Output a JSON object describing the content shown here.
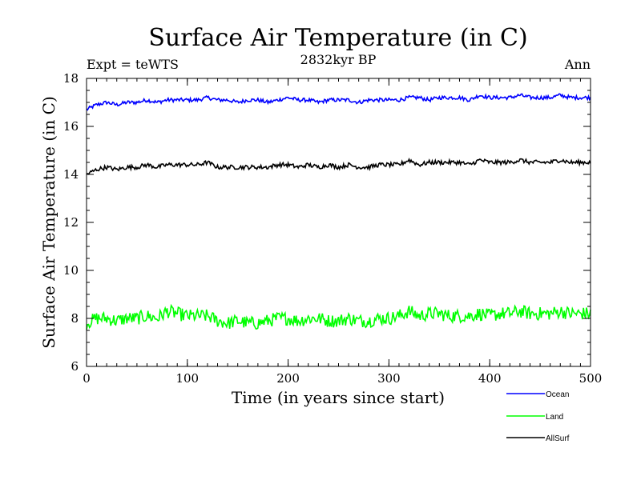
{
  "chart_data": {
    "type": "line",
    "title": "Surface Air Temperature (in C)",
    "subtitle": "2832kyr BP",
    "experiment_label": "Expt = teWTS",
    "period_label": "Ann",
    "xlabel": "Time (in years since start)",
    "ylabel": "Surface Air Temperature (in C)",
    "xlim": [
      0,
      500
    ],
    "ylim": [
      6,
      18
    ],
    "x_ticks": [
      0,
      100,
      200,
      300,
      400,
      500
    ],
    "y_ticks": [
      6,
      8,
      10,
      12,
      14,
      16,
      18
    ],
    "x_minor_step": 10,
    "y_minor_step": 0.5,
    "grid": false,
    "legend_position": "bottom-right",
    "series": [
      {
        "name": "Ocean",
        "color": "#0000ff",
        "x": [
          0,
          10,
          20,
          30,
          40,
          50,
          60,
          70,
          80,
          90,
          100,
          110,
          120,
          130,
          140,
          150,
          160,
          170,
          180,
          190,
          200,
          210,
          220,
          230,
          240,
          250,
          260,
          270,
          280,
          290,
          300,
          310,
          320,
          330,
          340,
          350,
          360,
          370,
          380,
          390,
          400,
          410,
          420,
          430,
          440,
          450,
          460,
          470,
          480,
          490,
          500
        ],
        "values": [
          16.7,
          16.9,
          17.0,
          16.9,
          17.0,
          17.0,
          17.1,
          17.0,
          17.1,
          17.1,
          17.1,
          17.1,
          17.2,
          17.1,
          17.1,
          17.0,
          17.1,
          17.1,
          17.0,
          17.1,
          17.2,
          17.1,
          17.1,
          17.0,
          17.1,
          17.1,
          17.1,
          17.0,
          17.1,
          17.1,
          17.1,
          17.1,
          17.2,
          17.2,
          17.1,
          17.2,
          17.2,
          17.2,
          17.1,
          17.3,
          17.2,
          17.2,
          17.2,
          17.3,
          17.2,
          17.2,
          17.2,
          17.3,
          17.2,
          17.2,
          17.2
        ]
      },
      {
        "name": "Land",
        "color": "#00ff00",
        "x": [
          0,
          10,
          20,
          30,
          40,
          50,
          60,
          70,
          80,
          90,
          100,
          110,
          120,
          130,
          140,
          150,
          160,
          170,
          180,
          190,
          200,
          210,
          220,
          230,
          240,
          250,
          260,
          270,
          280,
          290,
          300,
          310,
          320,
          330,
          340,
          350,
          360,
          370,
          380,
          390,
          400,
          410,
          420,
          430,
          440,
          450,
          460,
          470,
          480,
          490,
          500
        ],
        "values": [
          7.8,
          8.0,
          8.0,
          7.9,
          8.0,
          8.0,
          8.1,
          8.0,
          8.3,
          8.2,
          8.1,
          8.1,
          8.1,
          7.9,
          7.8,
          7.9,
          7.8,
          7.8,
          7.9,
          8.0,
          8.0,
          7.9,
          8.0,
          8.0,
          7.9,
          7.9,
          8.0,
          7.9,
          7.9,
          8.0,
          8.0,
          8.1,
          8.3,
          8.1,
          8.2,
          8.2,
          8.1,
          8.1,
          8.1,
          8.2,
          8.1,
          8.2,
          8.2,
          8.3,
          8.2,
          8.2,
          8.2,
          8.3,
          8.2,
          8.2,
          8.2
        ]
      },
      {
        "name": "AllSurf",
        "color": "#000000",
        "x": [
          0,
          10,
          20,
          30,
          40,
          50,
          60,
          70,
          80,
          90,
          100,
          110,
          120,
          130,
          140,
          150,
          160,
          170,
          180,
          190,
          200,
          210,
          220,
          230,
          240,
          250,
          260,
          270,
          280,
          290,
          300,
          310,
          320,
          330,
          340,
          350,
          360,
          370,
          380,
          390,
          400,
          410,
          420,
          430,
          440,
          450,
          460,
          470,
          480,
          490,
          500
        ],
        "values": [
          14.0,
          14.2,
          14.3,
          14.2,
          14.3,
          14.3,
          14.4,
          14.3,
          14.4,
          14.4,
          14.4,
          14.4,
          14.5,
          14.3,
          14.3,
          14.3,
          14.3,
          14.3,
          14.3,
          14.4,
          14.4,
          14.3,
          14.4,
          14.3,
          14.4,
          14.3,
          14.4,
          14.3,
          14.3,
          14.4,
          14.4,
          14.4,
          14.6,
          14.4,
          14.5,
          14.5,
          14.5,
          14.5,
          14.4,
          14.6,
          14.5,
          14.5,
          14.5,
          14.6,
          14.5,
          14.5,
          14.5,
          14.6,
          14.5,
          14.5,
          14.5
        ]
      }
    ]
  }
}
